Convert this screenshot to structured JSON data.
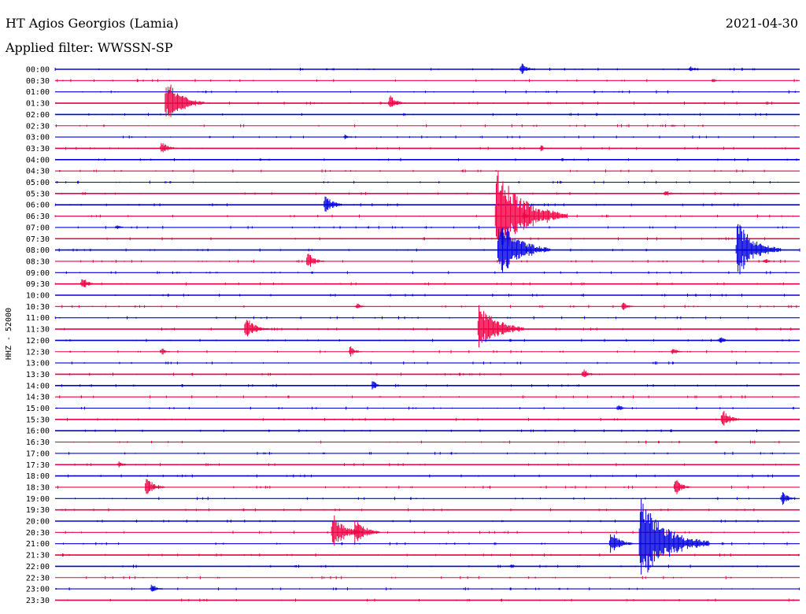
{
  "header": {
    "station": "HT Agios Georgios (Lamia)",
    "date": "2021-04-30",
    "filter": "Applied filter: WWSSN-SP"
  },
  "chart_data": {
    "type": "line",
    "ylabel": "HHZ - 52000",
    "colors": [
      "#0000dd",
      "#ee0044"
    ],
    "minutes_per_row": 30,
    "rows": [
      "00:00",
      "00:30",
      "01:00",
      "01:30",
      "02:00",
      "02:30",
      "03:00",
      "03:30",
      "04:00",
      "04:30",
      "05:00",
      "05:30",
      "06:00",
      "06:30",
      "07:00",
      "07:30",
      "08:00",
      "08:30",
      "09:00",
      "09:30",
      "10:00",
      "10:30",
      "11:00",
      "11:30",
      "12:00",
      "12:30",
      "13:00",
      "13:30",
      "14:00",
      "14:30",
      "15:00",
      "15:30",
      "16:00",
      "16:30",
      "17:00",
      "17:30",
      "18:00",
      "18:30",
      "19:00",
      "19:30",
      "20:00",
      "20:30",
      "21:00",
      "21:30",
      "22:00",
      "22:30",
      "23:00",
      "23:30"
    ],
    "events": [
      {
        "row": 0,
        "minute": 18.7,
        "amp": 10
      },
      {
        "row": 0,
        "minute": 25.5,
        "amp": 6
      },
      {
        "row": 2,
        "minute": 4.5,
        "amp": 3
      },
      {
        "row": 3,
        "minute": 4.4,
        "amp": 32
      },
      {
        "row": 3,
        "minute": 13.4,
        "amp": 12
      },
      {
        "row": 5,
        "minute": 24.8,
        "amp": 3
      },
      {
        "row": 6,
        "minute": 11.6,
        "amp": 4
      },
      {
        "row": 7,
        "minute": 4.2,
        "amp": 12
      },
      {
        "row": 7,
        "minute": 19.5,
        "amp": 5
      },
      {
        "row": 11,
        "minute": 24.5,
        "amp": 6
      },
      {
        "row": 12,
        "minute": 10.8,
        "amp": 14
      },
      {
        "row": 13,
        "minute": 17.7,
        "amp": 62
      },
      {
        "row": 13,
        "minute": 18.8,
        "amp": 6
      },
      {
        "row": 14,
        "minute": 2.4,
        "amp": 5
      },
      {
        "row": 16,
        "minute": 17.8,
        "amp": 44
      },
      {
        "row": 16,
        "minute": 27.4,
        "amp": 38
      },
      {
        "row": 17,
        "minute": 10.1,
        "amp": 12
      },
      {
        "row": 17,
        "minute": 28.5,
        "amp": 5
      },
      {
        "row": 19,
        "minute": 1.0,
        "amp": 10
      },
      {
        "row": 21,
        "minute": 12.1,
        "amp": 5
      },
      {
        "row": 21,
        "minute": 22.8,
        "amp": 7
      },
      {
        "row": 23,
        "minute": 7.6,
        "amp": 18
      },
      {
        "row": 23,
        "minute": 17.0,
        "amp": 38
      },
      {
        "row": 24,
        "minute": 26.7,
        "amp": 6
      },
      {
        "row": 25,
        "minute": 4.2,
        "amp": 6
      },
      {
        "row": 25,
        "minute": 11.8,
        "amp": 8
      },
      {
        "row": 25,
        "minute": 24.8,
        "amp": 6
      },
      {
        "row": 27,
        "minute": 21.2,
        "amp": 8
      },
      {
        "row": 28,
        "minute": 12.7,
        "amp": 7
      },
      {
        "row": 30,
        "minute": 22.6,
        "amp": 6
      },
      {
        "row": 31,
        "minute": 26.8,
        "amp": 14
      },
      {
        "row": 35,
        "minute": 2.5,
        "amp": 6
      },
      {
        "row": 37,
        "minute": 3.6,
        "amp": 14
      },
      {
        "row": 37,
        "minute": 24.9,
        "amp": 12
      },
      {
        "row": 38,
        "minute": 29.2,
        "amp": 10
      },
      {
        "row": 41,
        "minute": 11.1,
        "amp": 25
      },
      {
        "row": 41,
        "minute": 12.0,
        "amp": 20
      },
      {
        "row": 42,
        "minute": 22.3,
        "amp": 18
      },
      {
        "row": 42,
        "minute": 23.5,
        "amp": 60
      },
      {
        "row": 44,
        "minute": 18.3,
        "amp": 4
      },
      {
        "row": 46,
        "minute": 3.8,
        "amp": 8
      }
    ]
  }
}
